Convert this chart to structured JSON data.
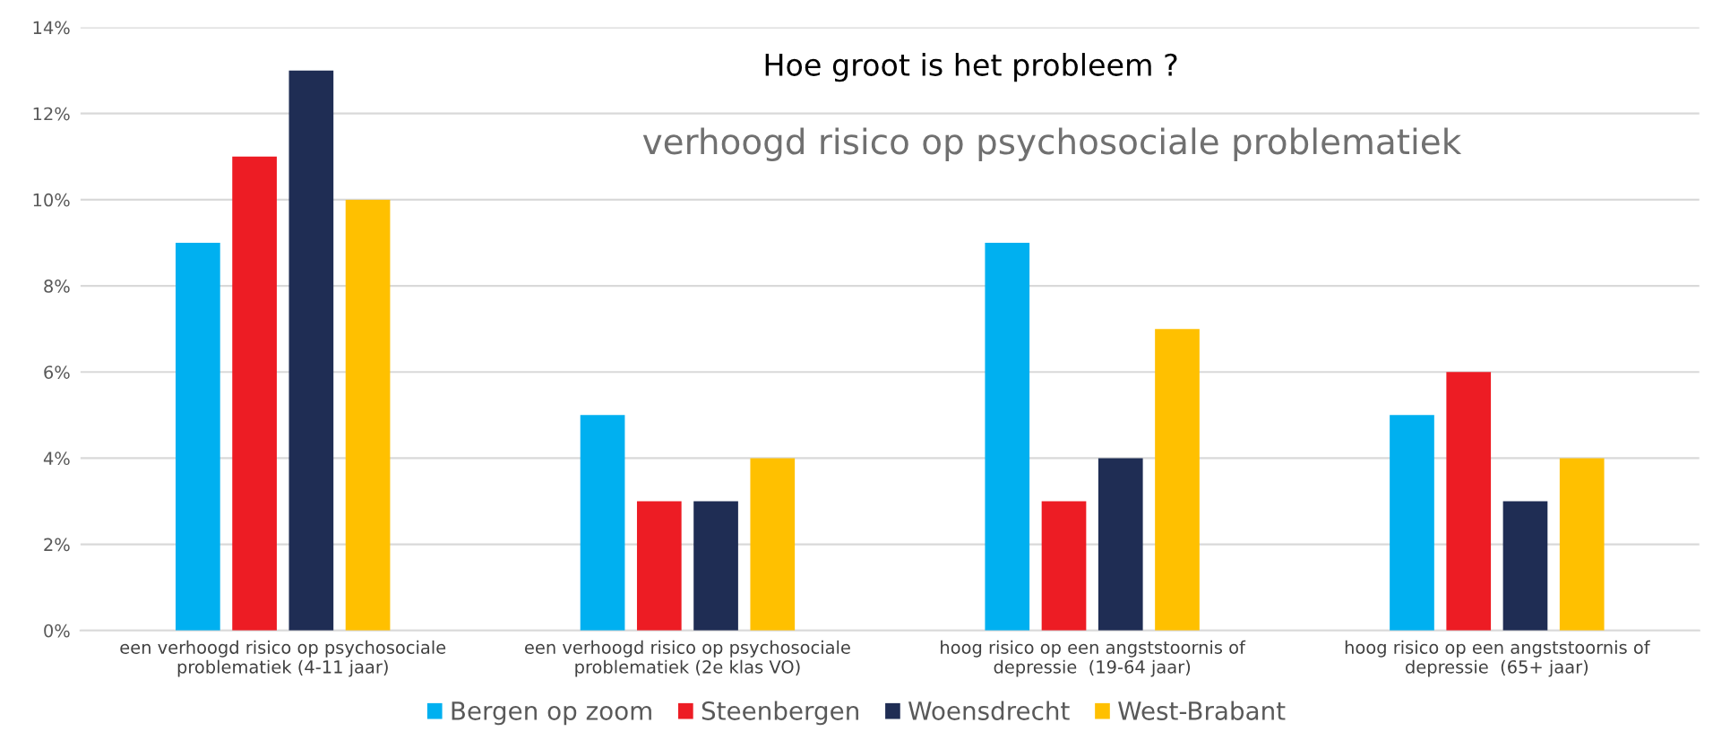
{
  "chart_data": {
    "type": "bar",
    "title": "Hoe groot is het probleem ?",
    "subtitle": "verhoogd risico op psychosociale problematiek",
    "categories": [
      "een verhoogd risico op psychosociale\nproblematiek (4-11 jaar)",
      "een verhoogd risico op psychosociale\nproblematiek (2e klas VO)",
      "hoog risico op een angststoornis of\ndepressie  (19-64 jaar)",
      "hoog risico op een angststoornis of\ndepressie  (65+ jaar)"
    ],
    "series": [
      {
        "name": "Bergen op zoom",
        "color": "#00b0f0",
        "values": [
          9,
          5,
          9,
          5
        ]
      },
      {
        "name": "Steenbergen",
        "color": "#ed1c24",
        "values": [
          11,
          3,
          3,
          6
        ]
      },
      {
        "name": "Woensdrecht",
        "color": "#1f2d54",
        "values": [
          13,
          3,
          4,
          3
        ]
      },
      {
        "name": "West-Brabant",
        "color": "#ffc000",
        "values": [
          10,
          4,
          7,
          4
        ]
      }
    ],
    "ylim": [
      0,
      14
    ],
    "yticks": [
      {
        "value": 0,
        "label": "0%"
      },
      {
        "value": 2,
        "label": "2%"
      },
      {
        "value": 4,
        "label": "4%"
      },
      {
        "value": 6,
        "label": "6%"
      },
      {
        "value": 8,
        "label": "8%"
      },
      {
        "value": 10,
        "label": "10%"
      },
      {
        "value": 12,
        "label": "12%"
      },
      {
        "value": 14,
        "label": "14%"
      }
    ],
    "grid": "y",
    "legend": "bottom"
  }
}
